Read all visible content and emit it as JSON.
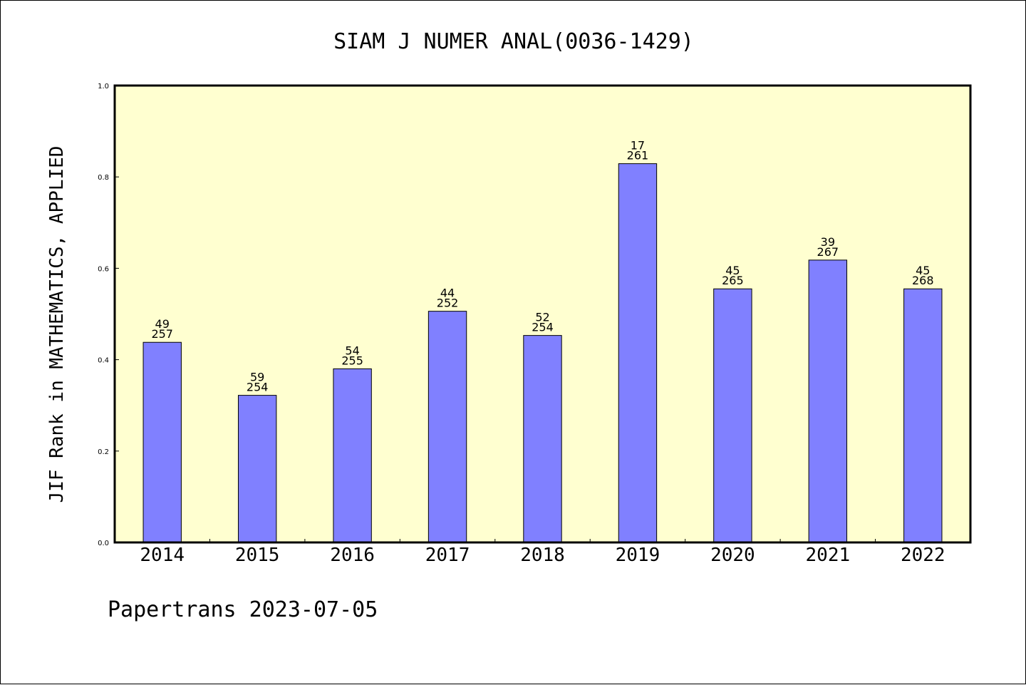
{
  "chart_data": {
    "type": "bar",
    "title": "SIAM J NUMER ANAL(0036-1429)",
    "ylabel": "JIF Rank in MATHEMATICS, APPLIED",
    "xlabel": "",
    "categories": [
      "2014",
      "2015",
      "2016",
      "2017",
      "2018",
      "2019",
      "2020",
      "2021",
      "2022"
    ],
    "values": [
      0.438,
      0.322,
      0.38,
      0.506,
      0.453,
      0.829,
      0.555,
      0.618,
      0.555
    ],
    "rank": [
      "49",
      "59",
      "54",
      "44",
      "52",
      "17",
      "45",
      "39",
      "45"
    ],
    "total": [
      "257",
      "254",
      "255",
      "252",
      "254",
      "261",
      "265",
      "267",
      "268"
    ],
    "ylim": [
      0,
      1.0
    ],
    "yticks": [
      "0.0",
      "0.2",
      "0.4",
      "0.6",
      "0.8",
      "1.0"
    ],
    "grid": false,
    "bar_color": "#8080ff",
    "plot_background": "#ffffd0"
  },
  "footer": "Papertrans 2023-07-05"
}
